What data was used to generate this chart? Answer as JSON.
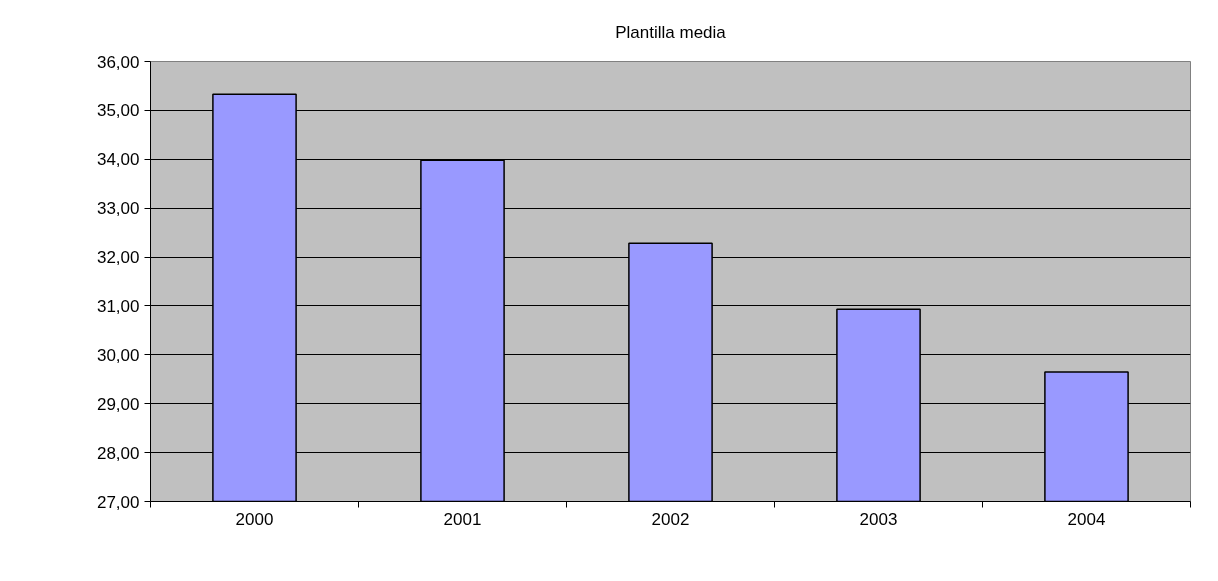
{
  "chart_data": {
    "type": "bar",
    "title": "Plantilla media",
    "categories": [
      "2000",
      "2001",
      "2002",
      "2003",
      "2004"
    ],
    "values": [
      35.33,
      33.98,
      32.28,
      30.93,
      29.65
    ],
    "color": "#9999ff",
    "ylim": [
      27,
      36
    ],
    "yticks": [
      {
        "value": 27,
        "label": "27,00"
      },
      {
        "value": 28,
        "label": "28,00"
      },
      {
        "value": 29,
        "label": "29,00"
      },
      {
        "value": 30,
        "label": "30,00"
      },
      {
        "value": 31,
        "label": "31,00"
      },
      {
        "value": 32,
        "label": "32,00"
      },
      {
        "value": 33,
        "label": "33,00"
      },
      {
        "value": 34,
        "label": "34,00"
      },
      {
        "value": 35,
        "label": "35,00"
      },
      {
        "value": 36,
        "label": "36,00"
      }
    ],
    "grid": "y"
  }
}
